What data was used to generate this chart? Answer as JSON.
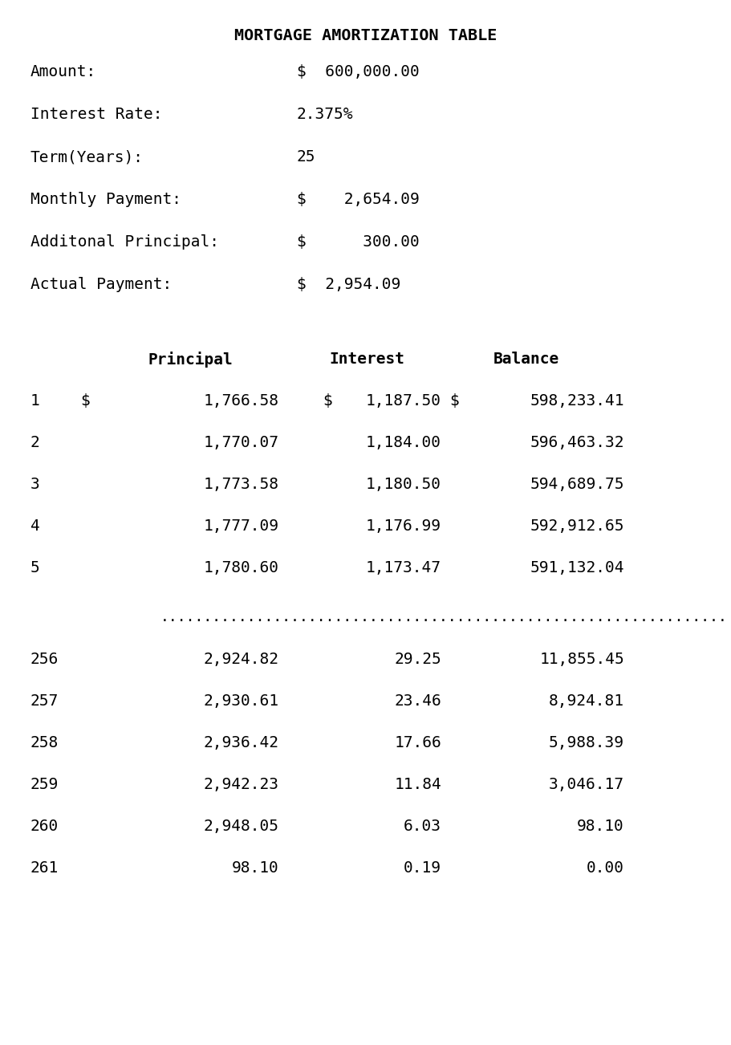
{
  "title": "MORTGAGE AMORTIZATION TABLE",
  "summary_labels": [
    "Amount:",
    "Interest Rate:",
    "Term(Years):",
    "Monthly Payment:",
    "Additonal Principal:",
    "Actual Payment:"
  ],
  "summary_values": [
    "$  600,000.00",
    "2.375%",
    "25",
    "$    2,654.09",
    "$      300.00",
    "$  2,954.09"
  ],
  "header_row": [
    "Principal",
    "Interest",
    "Balance"
  ],
  "rows_top": [
    [
      "1",
      "$",
      "1,766.58",
      "$",
      "1,187.50",
      "$",
      "598,233.41"
    ],
    [
      "2",
      "",
      "1,770.07",
      "",
      "1,184.00",
      "",
      "596,463.32"
    ],
    [
      "3",
      "",
      "1,773.58",
      "",
      "1,180.50",
      "",
      "594,689.75"
    ],
    [
      "4",
      "",
      "1,777.09",
      "",
      "1,176.99",
      "",
      "592,912.65"
    ],
    [
      "5",
      "",
      "1,780.60",
      "",
      "1,173.47",
      "",
      "591,132.04"
    ]
  ],
  "rows_bottom": [
    [
      "256",
      "2,924.82",
      "29.25",
      "11,855.45"
    ],
    [
      "257",
      "2,930.61",
      "23.46",
      "8,924.81"
    ],
    [
      "258",
      "2,936.42",
      "17.66",
      "5,988.39"
    ],
    [
      "259",
      "2,942.23",
      "11.84",
      "3,046.17"
    ],
    [
      "260",
      "2,948.05",
      "6.03",
      "98.10"
    ],
    [
      "261",
      "98.10",
      "0.19",
      "0.00"
    ]
  ],
  "bg_color": "#ffffff",
  "text_color": "#000000",
  "font_size": 14.0,
  "title_font_size": 14.5,
  "dots_count": 65
}
